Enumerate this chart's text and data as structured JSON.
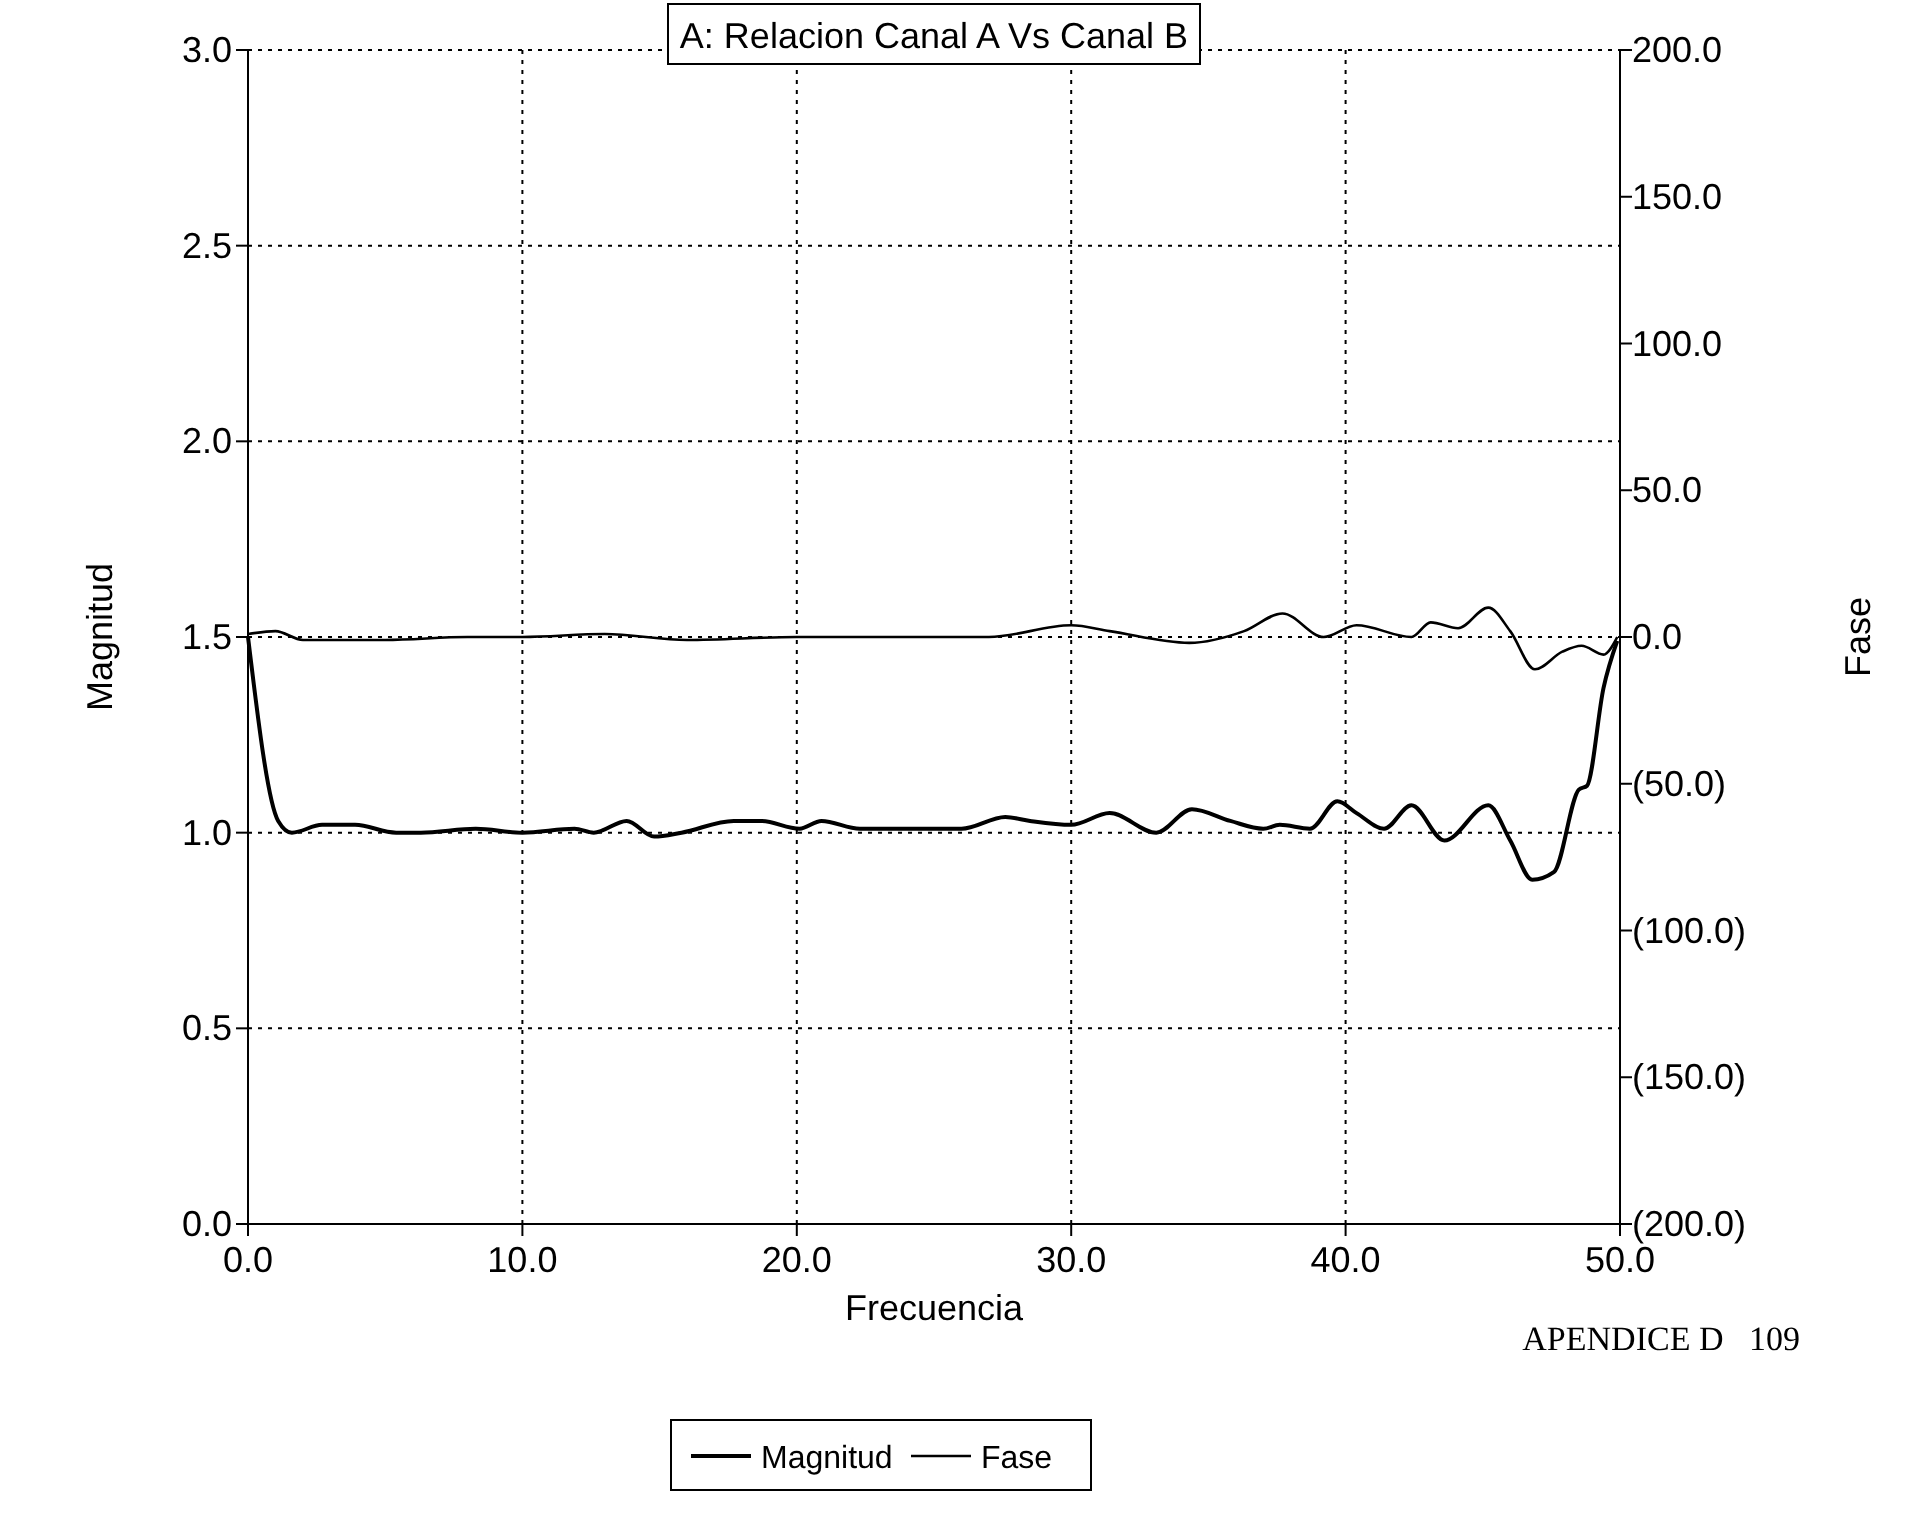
{
  "chart_data": {
    "type": "line",
    "title": "A: Relacion Canal A Vs Canal B",
    "xlabel": "Frecuencia",
    "ylabel": "Magnitud",
    "y2label": "Fase",
    "annotations": [
      "APENDICE D   109"
    ],
    "xlim": [
      0,
      50
    ],
    "xticks": [
      {
        "value": 0,
        "label": "0.0"
      },
      {
        "value": 10,
        "label": "10.0"
      },
      {
        "value": 20,
        "label": "20.0"
      },
      {
        "value": 30,
        "label": "30.0"
      },
      {
        "value": 40,
        "label": "40.0"
      },
      {
        "value": 50,
        "label": "50.0"
      }
    ],
    "ylim": [
      0,
      3
    ],
    "yticks": [
      {
        "value": 0,
        "label": "0.0"
      },
      {
        "value": 0.5,
        "label": "0.5"
      },
      {
        "value": 1,
        "label": "1.0"
      },
      {
        "value": 1.5,
        "label": "1.5"
      },
      {
        "value": 2,
        "label": "2.0"
      },
      {
        "value": 2.5,
        "label": "2.5"
      },
      {
        "value": 3,
        "label": "3.0"
      }
    ],
    "y2lim": [
      -200,
      200
    ],
    "y2ticks": [
      {
        "value": -200,
        "label": "(200.0)"
      },
      {
        "value": -150,
        "label": "(150.0)"
      },
      {
        "value": -100,
        "label": "(100.0)"
      },
      {
        "value": -50,
        "label": "(50.0)"
      },
      {
        "value": 0,
        "label": "0.0"
      },
      {
        "value": 50,
        "label": "50.0"
      },
      {
        "value": 100,
        "label": "100.0"
      },
      {
        "value": 150,
        "label": "150.0"
      },
      {
        "value": 200,
        "label": "200.0"
      }
    ],
    "grid": true,
    "legend": "bottom",
    "series": [
      {
        "name": "Magnitud",
        "color": "#000000",
        "line_style": "solid",
        "x": [
          0,
          1.1,
          1.6,
          2.7,
          3.9,
          5.4,
          6.3,
          8.3,
          10,
          11.9,
          12.6,
          13.8,
          14.8,
          15.8,
          17.7,
          18.7,
          20.1,
          20.9,
          22.3,
          24.7,
          26,
          27.6,
          28.5,
          30,
          31.4,
          33.1,
          34.4,
          35.8,
          37,
          37.6,
          38.7,
          39.7,
          40.4,
          41.4,
          42.4,
          43.6,
          45.2,
          46,
          46.8,
          47.6,
          48.5,
          48.8,
          49.4,
          49.9
        ],
        "values": [
          1.5,
          1.03,
          1,
          1.02,
          1.02,
          1,
          1,
          1.01,
          1,
          1.01,
          1,
          1.03,
          0.99,
          1,
          1.03,
          1.03,
          1.01,
          1.03,
          1.01,
          1.01,
          1.01,
          1.04,
          1.03,
          1.02,
          1.05,
          1,
          1.06,
          1.03,
          1.01,
          1.02,
          1.01,
          1.08,
          1.05,
          1.01,
          1.07,
          0.98,
          1.07,
          0.98,
          0.88,
          0.9,
          1.11,
          1.12,
          1.37,
          1.49
        ]
      },
      {
        "name": "Fase",
        "color": "#000000",
        "line_style": "solid",
        "axis": "y2",
        "x": [
          0,
          1,
          2,
          5,
          8,
          10,
          13,
          16,
          20,
          24,
          27,
          30,
          31.4,
          34.3,
          36.3,
          37.7,
          39.2,
          40.4,
          42.4,
          43.1,
          44.1,
          45.2,
          46,
          46.9,
          47.9,
          48.6,
          49.4,
          49.9
        ],
        "values": [
          1,
          2,
          -1,
          -1,
          0,
          0,
          1,
          -1,
          0,
          0,
          0,
          4,
          2,
          -2,
          2,
          8,
          0,
          4,
          0,
          5,
          3,
          10,
          2,
          -11,
          -5,
          -3,
          -6,
          0
        ]
      }
    ]
  }
}
